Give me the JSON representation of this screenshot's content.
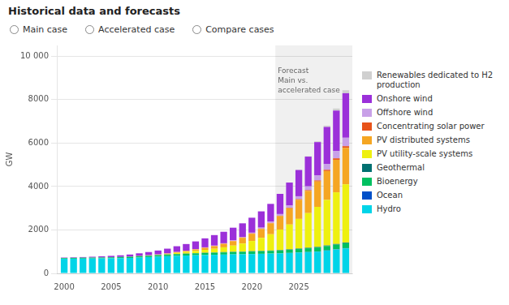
{
  "chart_data": {
    "type": "bar",
    "stacked": true,
    "title": "Historical data and forecasts",
    "y_label": "GW",
    "x": [
      2000,
      2001,
      2002,
      2003,
      2004,
      2005,
      2006,
      2007,
      2008,
      2009,
      2010,
      2011,
      2012,
      2013,
      2014,
      2015,
      2016,
      2017,
      2018,
      2019,
      2020,
      2021,
      2022,
      2023,
      2024,
      2025,
      2026,
      2027,
      2028,
      2029,
      2030
    ],
    "xlim": [
      1999.3,
      2030.7
    ],
    "xticks": [
      2000,
      2005,
      2010,
      2015,
      2020,
      2025
    ],
    "ylim": [
      0,
      10500
    ],
    "yticks": [
      0,
      2000,
      4000,
      6000,
      8000,
      {
        "value": 10000,
        "label": "10 000"
      }
    ],
    "grid": true,
    "legend": "right",
    "series": [
      {
        "name": "Hydro",
        "color": "#00d4e8",
        "values": [
          670,
          675,
          680,
          685,
          690,
          695,
          700,
          710,
          730,
          750,
          770,
          790,
          810,
          820,
          835,
          845,
          855,
          865,
          875,
          880,
          890,
          900,
          910,
          920,
          940,
          960,
          980,
          1000,
          1050,
          1100,
          1150
        ]
      },
      {
        "name": "Ocean",
        "color": "#0050c8",
        "values": [
          0,
          0,
          0,
          0,
          0,
          0,
          0,
          0,
          0,
          0,
          0,
          0,
          0,
          0,
          0,
          0,
          0,
          0,
          0,
          0,
          1,
          1,
          1,
          2,
          3,
          4,
          5,
          6,
          8,
          10,
          12
        ]
      },
      {
        "name": "Bioenergy",
        "color": "#00c060",
        "values": [
          30,
          32,
          34,
          36,
          38,
          42,
          46,
          50,
          54,
          58,
          63,
          68,
          73,
          78,
          85,
          90,
          95,
          100,
          105,
          110,
          115,
          120,
          125,
          130,
          140,
          155,
          170,
          185,
          200,
          215,
          230
        ]
      },
      {
        "name": "Geothermal",
        "color": "#007070",
        "values": [
          8,
          8,
          9,
          9,
          9,
          9,
          10,
          10,
          10,
          10,
          11,
          11,
          12,
          12,
          12,
          13,
          13,
          14,
          14,
          14,
          15,
          15,
          16,
          17,
          18,
          20,
          22,
          24,
          26,
          28,
          30
        ]
      },
      {
        "name": "PV utility-scale systems",
        "color": "#eef010",
        "values": [
          0,
          0,
          0,
          0,
          0,
          1,
          1,
          2,
          4,
          6,
          12,
          24,
          50,
          75,
          100,
          135,
          170,
          220,
          285,
          370,
          470,
          600,
          750,
          950,
          1150,
          1370,
          1600,
          1850,
          2100,
          2380,
          2680
        ]
      },
      {
        "name": "PV distributed systems",
        "color": "#f5a623",
        "values": [
          0,
          0,
          0,
          0,
          0,
          1,
          1,
          2,
          4,
          6,
          10,
          17,
          30,
          48,
          68,
          94,
          120,
          158,
          205,
          265,
          335,
          410,
          505,
          620,
          750,
          880,
          1020,
          1170,
          1330,
          1500,
          1680
        ]
      },
      {
        "name": "Concentrating solar power",
        "color": "#e8531a",
        "values": [
          0,
          0,
          0,
          0,
          0,
          0,
          0,
          0,
          1,
          1,
          2,
          3,
          4,
          6,
          8,
          9,
          10,
          11,
          12,
          13,
          14,
          15,
          16,
          18,
          22,
          28,
          36,
          46,
          56,
          66,
          76
        ]
      },
      {
        "name": "Offshore wind",
        "color": "#c8a0e8",
        "values": [
          1,
          1,
          1,
          1,
          1,
          1,
          2,
          2,
          3,
          3,
          4,
          5,
          6,
          7,
          9,
          12,
          15,
          18,
          23,
          28,
          34,
          45,
          58,
          75,
          100,
          135,
          175,
          225,
          275,
          330,
          390
        ]
      },
      {
        "name": "Onshore wind",
        "color": "#9b30d9",
        "values": [
          18,
          22,
          27,
          35,
          47,
          58,
          72,
          92,
          118,
          148,
          180,
          220,
          265,
          305,
          355,
          415,
          485,
          530,
          585,
          625,
          690,
          750,
          820,
          930,
          1060,
          1210,
          1370,
          1540,
          1700,
          1870,
          2050
        ]
      },
      {
        "name": "Renewables dedicated to H2\nproduction",
        "color": "#d0d0d0",
        "values": [
          0,
          0,
          0,
          0,
          0,
          0,
          0,
          0,
          0,
          0,
          0,
          0,
          0,
          0,
          0,
          0,
          0,
          0,
          0,
          0,
          0,
          0,
          0,
          0,
          2,
          8,
          18,
          35,
          60,
          95,
          140
        ]
      }
    ],
    "annotations": [
      {
        "text": "Forecast\nMain vs.\naccelerated case",
        "x": 2022.5,
        "y": 9500,
        "color": "#f0f0f0"
      },
      {
        "text": "Main case"
      },
      {
        "text": "Accelerated case"
      },
      {
        "text": "Compare cases"
      }
    ]
  }
}
